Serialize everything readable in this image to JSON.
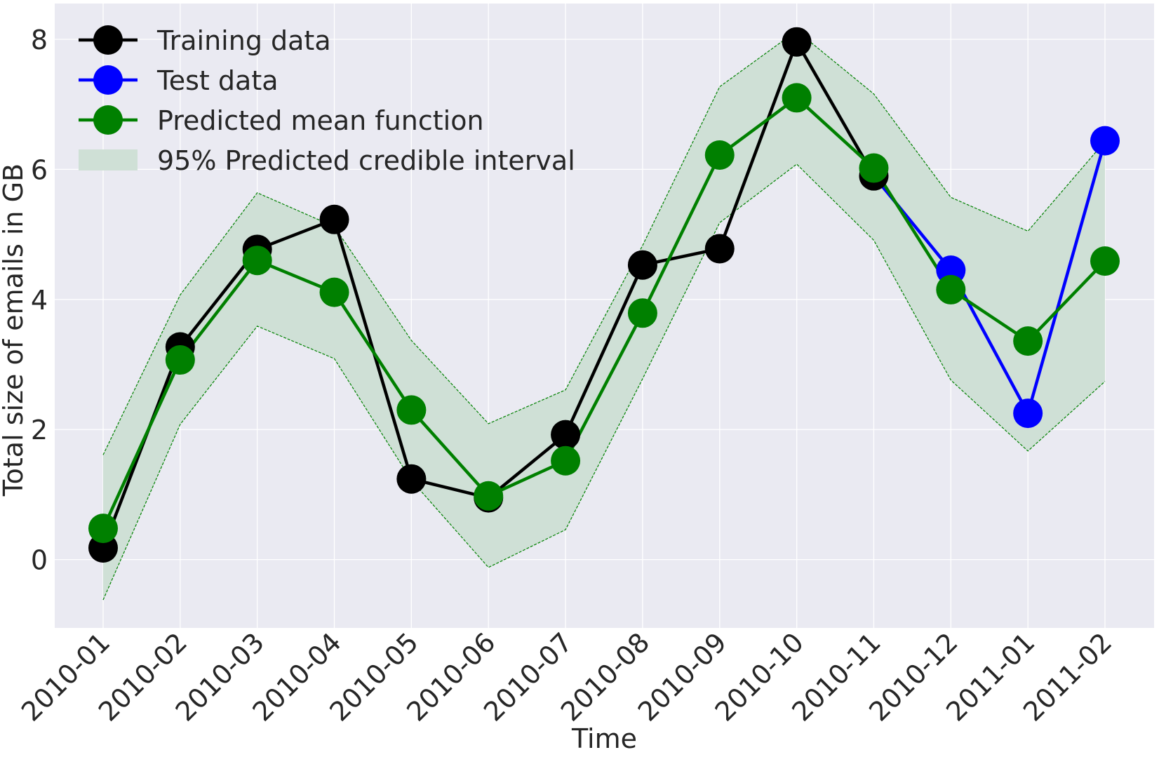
{
  "chart_data": {
    "type": "line",
    "xlabel": "Time",
    "ylabel": "Total size of emails in GB",
    "ylim": [
      -1.05,
      8.55
    ],
    "yticks": [
      0,
      2,
      4,
      6,
      8
    ],
    "grid": true,
    "legend_placement": "top-left",
    "categories": [
      "2010-01",
      "2010-02",
      "2010-03",
      "2010-04",
      "2010-05",
      "2010-06",
      "2010-07",
      "2010-08",
      "2010-09",
      "2010-10",
      "2010-11",
      "2010-12",
      "2011-01",
      "2011-02"
    ],
    "series": [
      {
        "name": "Training data",
        "color": "#000000",
        "values": [
          0.18,
          3.27,
          4.77,
          5.23,
          1.24,
          0.95,
          1.92,
          4.53,
          4.78,
          7.96,
          5.9,
          null,
          null,
          null
        ]
      },
      {
        "name": "Test data",
        "color": "#0000ff",
        "values": [
          null,
          null,
          null,
          null,
          null,
          null,
          null,
          null,
          null,
          null,
          5.9,
          4.45,
          2.25,
          6.44
        ]
      },
      {
        "name": "Predicted mean function",
        "color": "#008000",
        "values": [
          0.48,
          3.07,
          4.6,
          4.11,
          2.3,
          0.98,
          1.52,
          3.79,
          6.22,
          7.1,
          6.02,
          4.15,
          3.36,
          4.59
        ]
      }
    ],
    "interval": {
      "name": "95% Predicted credible interval",
      "fill_color": "#cfe0d6",
      "line_color": "#008000",
      "lower": [
        -0.62,
        2.08,
        3.59,
        3.09,
        1.22,
        -0.12,
        0.46,
        2.78,
        5.18,
        6.08,
        4.91,
        2.76,
        1.67,
        2.74
      ],
      "upper": [
        1.61,
        4.07,
        5.64,
        5.12,
        3.37,
        2.09,
        2.61,
        4.83,
        7.27,
        8.13,
        7.16,
        5.57,
        5.05,
        6.43
      ]
    }
  }
}
